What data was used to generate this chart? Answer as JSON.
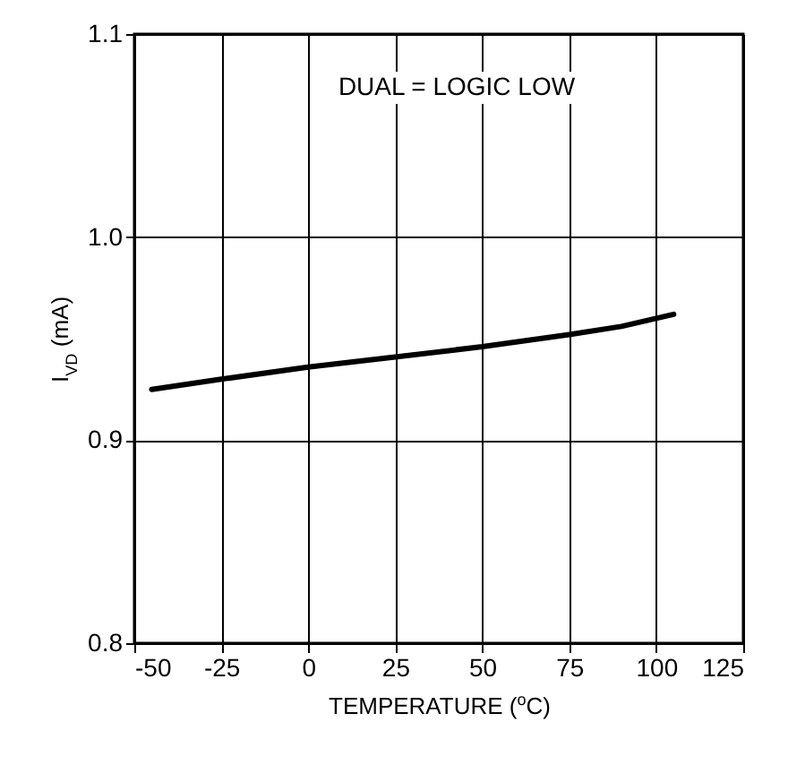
{
  "chart_data": {
    "type": "line",
    "xlabel": "TEMPERATURE ($^{o}$C)",
    "ylabel": "I$_{VD}$ (mA)",
    "annotations": [
      "DUAL = LOGIC LOW"
    ],
    "x": [
      -45,
      -25,
      0,
      25,
      50,
      75,
      90,
      105
    ],
    "series": [
      {
        "color": "#000000",
        "values": [
          0.925,
          0.93,
          0.936,
          0.941,
          0.946,
          0.952,
          0.956,
          0.962
        ]
      }
    ],
    "xlim": [
      -50,
      125
    ],
    "xticks": [
      -50,
      -25,
      0,
      25,
      50,
      75,
      100,
      125
    ],
    "ylim": [
      0.8,
      1.1
    ],
    "yticks": [
      {
        "value": 0.8,
        "label": "0.8"
      },
      {
        "value": 0.9,
        "label": "0.9"
      },
      {
        "value": 1.0,
        "label": "1.0"
      },
      {
        "value": 1.1,
        "label": "1.1"
      }
    ],
    "grid": true,
    "marker": "none",
    "line_style": "solid"
  }
}
